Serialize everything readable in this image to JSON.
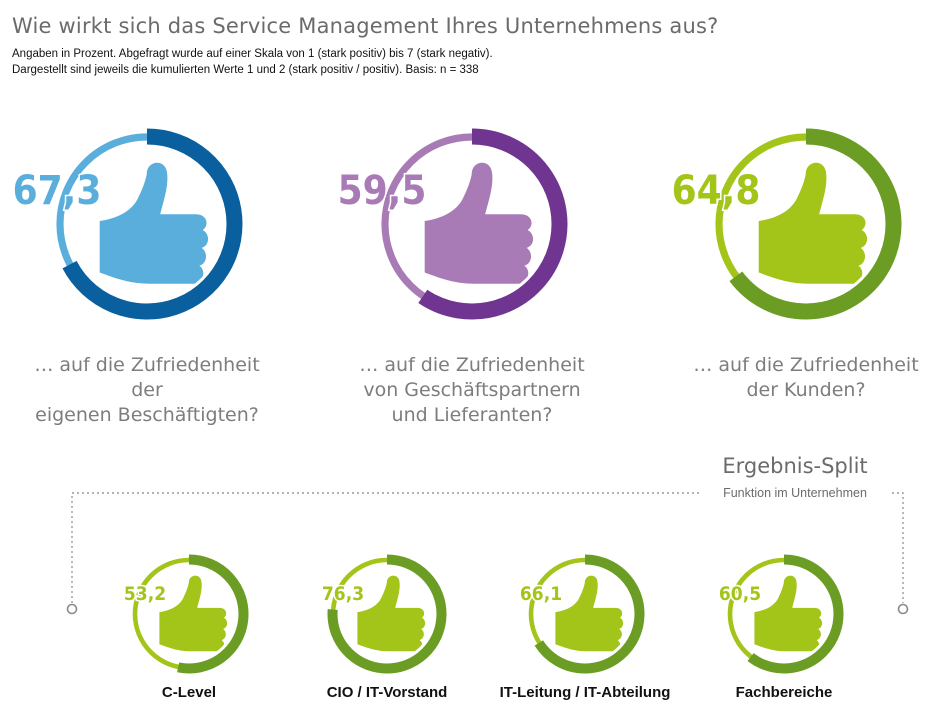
{
  "title": "Wie wirkt sich das Service Management Ihres Unternehmens aus?",
  "subtitle": {
    "line1": "Angaben in Prozent. Abgefragt wurde auf einer Skala von 1 (stark positiv) bis 7 (stark negativ).",
    "line2": "Dargestellt sind jeweils die kumulierten Werte 1 und 2 (stark positiv / positiv). Basis: n = 338"
  },
  "split": {
    "title": "Ergebnis-Split",
    "subtitle": "Funktion im Unternehmen"
  },
  "chart_data": [
    {
      "type": "pie",
      "unit": "%",
      "items": [
        {
          "label_lines": [
            "… auf die Zufriedenheit der",
            "eigenen Beschäftigten?"
          ],
          "value": 67.3,
          "value_label": "67,3",
          "color": "#5aaedc",
          "ring_color": "#0a5f9e"
        },
        {
          "label_lines": [
            "… auf die Zufriedenheit",
            "von Geschäftspartnern",
            "und Lieferanten?"
          ],
          "value": 59.5,
          "value_label": "59,5",
          "color": "#a87bb7",
          "ring_color": "#6f3590"
        },
        {
          "label_lines": [
            "… auf die Zufriedenheit",
            "der Kunden?"
          ],
          "value": 64.8,
          "value_label": "64,8",
          "color": "#a3c519",
          "ring_color": "#6b9c23"
        }
      ]
    },
    {
      "type": "pie",
      "unit": "%",
      "items": [
        {
          "label": "C-Level",
          "value": 53.2,
          "value_label": "53,2"
        },
        {
          "label": "CIO / IT-Vorstand",
          "value": 76.3,
          "value_label": "76,3"
        },
        {
          "label": "IT-Leitung / IT-Abteilung",
          "value": 66.1,
          "value_label": "66,1"
        },
        {
          "label": "Fachbereiche",
          "value": 60.5,
          "value_label": "60,5"
        }
      ],
      "color": "#a3c519",
      "ring_color": "#6b9c23"
    }
  ]
}
